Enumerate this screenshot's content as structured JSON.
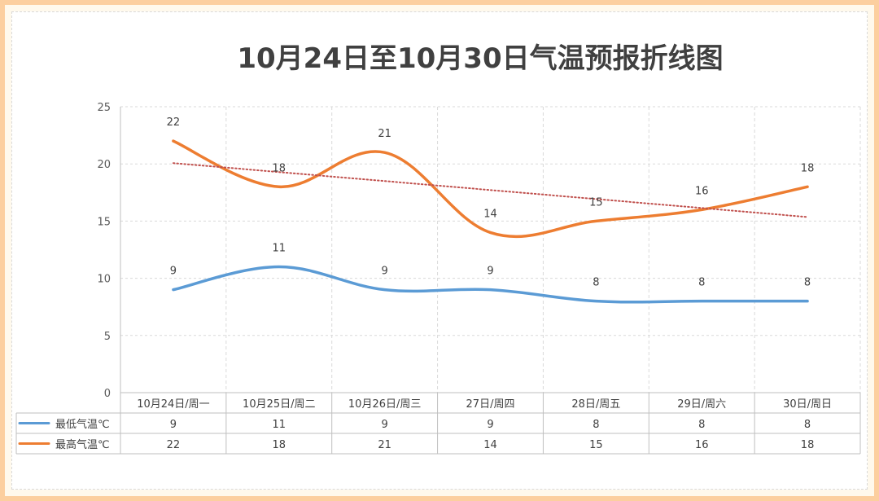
{
  "chart_data": {
    "type": "line",
    "title": "10月24日至10月30日气温预报折线图",
    "categories": [
      "10月24日/周一",
      "10月25日/周二",
      "10月26日/周三",
      "27日/周四",
      "28日/周五",
      "29日/周六",
      "30日/周日"
    ],
    "series": [
      {
        "name": "最低气温℃",
        "values": [
          9,
          11,
          9,
          9,
          8,
          8,
          8
        ],
        "color": "#5b9bd5"
      },
      {
        "name": "最高气温℃",
        "values": [
          22,
          18,
          21,
          14,
          15,
          16,
          18
        ],
        "color": "#ed7d31"
      }
    ],
    "trendline": {
      "series": "最高气温℃",
      "type": "linear",
      "color": "#c0504d",
      "style": "dotted"
    },
    "ylim": [
      0,
      25
    ],
    "yticks": [
      0,
      5,
      10,
      15,
      20,
      25
    ],
    "grid": "dashed",
    "data_table": true,
    "legend": "data-table"
  }
}
